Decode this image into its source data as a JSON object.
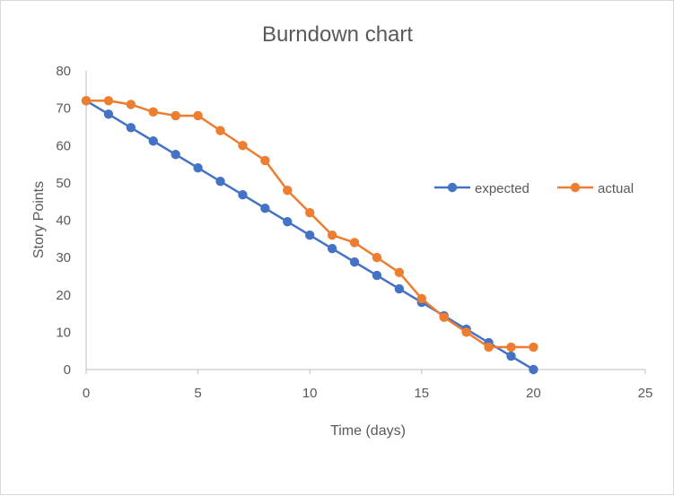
{
  "chart_data": {
    "type": "scatter",
    "title": "Burndown chart",
    "xlabel": "Time (days)",
    "ylabel": "Story Points",
    "xlim": [
      0,
      25
    ],
    "ylim": [
      0,
      80
    ],
    "x_ticks": [
      0,
      5,
      10,
      15,
      20,
      25
    ],
    "y_ticks": [
      0,
      10,
      20,
      30,
      40,
      50,
      60,
      70,
      80
    ],
    "grid": false,
    "legend_position": "right",
    "series": [
      {
        "name": "expected",
        "color": "#4472C4",
        "x": [
          0,
          1,
          2,
          3,
          4,
          5,
          6,
          7,
          8,
          9,
          10,
          11,
          12,
          13,
          14,
          15,
          16,
          17,
          18,
          19,
          20
        ],
        "y": [
          72,
          68.4,
          64.8,
          61.2,
          57.6,
          54,
          50.4,
          46.8,
          43.2,
          39.6,
          36,
          32.4,
          28.8,
          25.2,
          21.6,
          18,
          14.4,
          10.8,
          7.2,
          3.6,
          0
        ]
      },
      {
        "name": "actual",
        "color": "#ED7D31",
        "x": [
          0,
          1,
          2,
          3,
          4,
          5,
          6,
          7,
          8,
          9,
          10,
          11,
          12,
          13,
          14,
          15,
          16,
          17,
          18,
          19,
          20
        ],
        "y": [
          72,
          72,
          71,
          69,
          68,
          68,
          64,
          60,
          56,
          48,
          42,
          36,
          34,
          30,
          26,
          19,
          14,
          10,
          6,
          6,
          6
        ]
      }
    ]
  }
}
